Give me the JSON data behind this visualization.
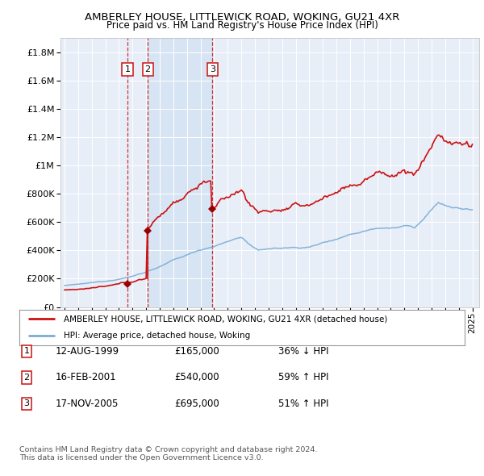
{
  "title": "AMBERLEY HOUSE, LITTLEWICK ROAD, WOKING, GU21 4XR",
  "subtitle": "Price paid vs. HM Land Registry's House Price Index (HPI)",
  "plot_bg": "#e8eef8",
  "transactions": [
    {
      "num": 1,
      "date_label": "12-AUG-1999",
      "x_year": 1999.62,
      "price": 165000,
      "pct": "36% ↓ HPI"
    },
    {
      "num": 2,
      "date_label": "16-FEB-2001",
      "x_year": 2001.12,
      "price": 540000,
      "pct": "59% ↑ HPI"
    },
    {
      "num": 3,
      "date_label": "17-NOV-2005",
      "x_year": 2005.87,
      "price": 695000,
      "pct": "51% ↑ HPI"
    }
  ],
  "legend_line1": "AMBERLEY HOUSE, LITTLEWICK ROAD, WOKING, GU21 4XR (detached house)",
  "legend_line2": "HPI: Average price, detached house, Woking",
  "footer1": "Contains HM Land Registry data © Crown copyright and database right 2024.",
  "footer2": "This data is licensed under the Open Government Licence v3.0.",
  "hpi_color": "#7aadd4",
  "hpi_fill": "#c8dff0",
  "price_color": "#cc1111",
  "vline_color": "#cc1111",
  "marker_color": "#990000",
  "ylim_max": 1900000,
  "xlim_min": 1994.7,
  "xlim_max": 2025.5,
  "yticks": [
    0,
    200000,
    400000,
    600000,
    800000,
    1000000,
    1200000,
    1400000,
    1600000,
    1800000
  ]
}
